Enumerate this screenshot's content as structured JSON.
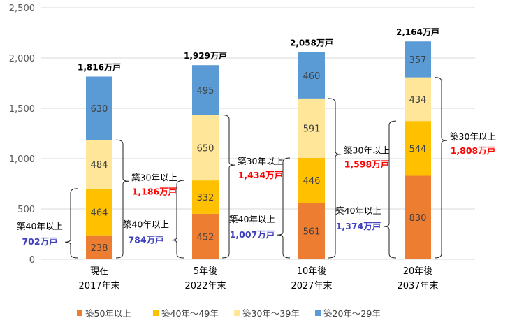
{
  "chart_data": {
    "type": "bar",
    "stacked": true,
    "categories": [
      [
        "現在",
        "2017年末"
      ],
      [
        "5年後",
        "2022年末"
      ],
      [
        "10年後",
        "2027年末"
      ],
      [
        "20年後",
        "2037年末"
      ]
    ],
    "series": [
      {
        "name": "築50年以上",
        "color": "#ED7D31",
        "values": [
          238,
          452,
          561,
          830
        ]
      },
      {
        "name": "築40年～49年",
        "color": "#FFC000",
        "values": [
          464,
          332,
          446,
          544
        ]
      },
      {
        "name": "築30年～39年",
        "color": "#FFE699",
        "values": [
          484,
          650,
          591,
          434
        ]
      },
      {
        "name": "築20年～29年",
        "color": "#5B9BD5",
        "values": [
          630,
          495,
          460,
          357
        ]
      }
    ],
    "totals": [
      "1,816万戸",
      "1,929万戸",
      "2,058万戸",
      "2,164万戸"
    ],
    "annotations": {
      "over40_label": "築40年以上",
      "over40_values": [
        "702万戸",
        "784万戸",
        "1,007万戸",
        "1,374万戸"
      ],
      "over40_color": "#3F3FBF",
      "over30_label": "築30年以上",
      "over30_values": [
        "1,186万戸",
        "1,434万戸",
        "1,598万戸",
        "1,808万戸"
      ],
      "over30_color": "#FF0000"
    },
    "yticks": [
      "0",
      "500",
      "1,000",
      "1,500",
      "2,000",
      "2,500"
    ],
    "ylim": [
      0,
      2500
    ],
    "grid": true,
    "legend": "bottom"
  }
}
